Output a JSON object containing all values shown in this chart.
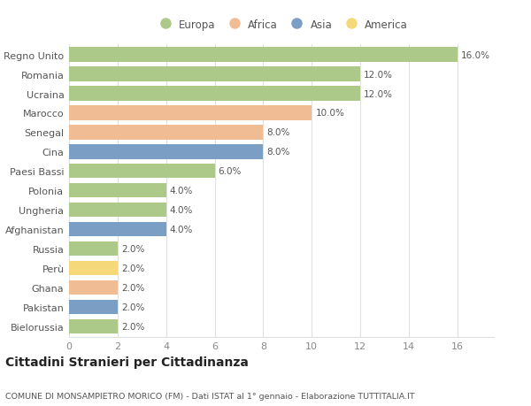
{
  "countries": [
    "Regno Unito",
    "Romania",
    "Ucraina",
    "Marocco",
    "Senegal",
    "Cina",
    "Paesi Bassi",
    "Polonia",
    "Ungheria",
    "Afghanistan",
    "Russia",
    "Perù",
    "Ghana",
    "Pakistan",
    "Bielorussia"
  ],
  "values": [
    16.0,
    12.0,
    12.0,
    10.0,
    8.0,
    8.0,
    6.0,
    4.0,
    4.0,
    4.0,
    2.0,
    2.0,
    2.0,
    2.0,
    2.0
  ],
  "continents": [
    "Europa",
    "Europa",
    "Europa",
    "Africa",
    "Africa",
    "Asia",
    "Europa",
    "Europa",
    "Europa",
    "Asia",
    "Europa",
    "America",
    "Africa",
    "Asia",
    "Europa"
  ],
  "continent_colors": {
    "Europa": "#adc98a",
    "Africa": "#f0bc94",
    "Asia": "#7b9fc4",
    "America": "#f5d87a"
  },
  "legend_order": [
    "Europa",
    "Africa",
    "Asia",
    "America"
  ],
  "xlim": [
    0,
    16
  ],
  "xticks": [
    0,
    2,
    4,
    6,
    8,
    10,
    12,
    14,
    16
  ],
  "title": "Cittadini Stranieri per Cittadinanza",
  "subtitle": "COMUNE DI MONSAMPIETRO MORICO (FM) - Dati ISTAT al 1° gennaio - Elaborazione TUTTITALIA.IT",
  "background_color": "#ffffff",
  "grid_color": "#e0e0e0",
  "bar_height": 0.75,
  "label_color": "#555555",
  "tick_color": "#888888"
}
